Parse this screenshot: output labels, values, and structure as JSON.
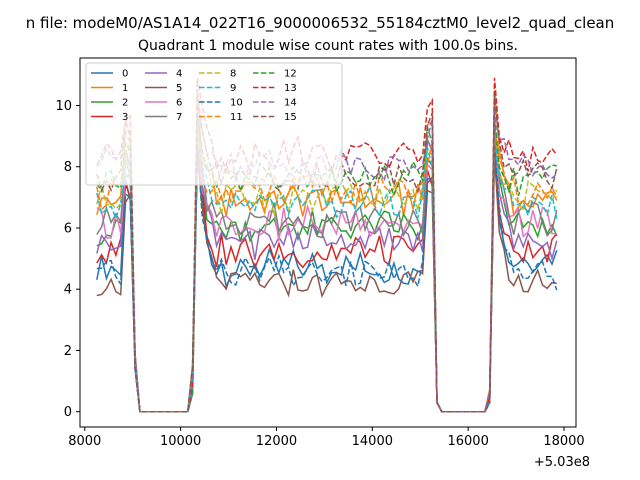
{
  "chart_data": {
    "type": "line",
    "suptitle": "n file: modeM0/AS1A14_022T16_9000006532_55184cztM0_level2_quad_clean",
    "title": "Quadrant 1 module wise count rates with 100.0s bins.",
    "xlabel": "",
    "ylabel": "",
    "x_offset_label": "+5.03e8",
    "xlim": [
      7900,
      18250
    ],
    "ylim": [
      -0.5,
      11.55
    ],
    "x_ticks": [
      8000,
      10000,
      12000,
      14000,
      16000,
      18000
    ],
    "x_tick_labels": [
      "8000",
      "10000",
      "12000",
      "14000",
      "16000",
      "18000"
    ],
    "y_ticks": [
      0,
      2,
      4,
      6,
      8,
      10
    ],
    "y_tick_labels": [
      "0",
      "2",
      "4",
      "6",
      "8",
      "10"
    ],
    "legend_location": "upper-left",
    "legend_columns": 4,
    "time_start": 8250,
    "time_end": 17850,
    "bin_width": 100,
    "segments": [
      {
        "from": 8250,
        "to": 8950,
        "state": "on"
      },
      {
        "from": 9050,
        "to": 9150,
        "state": "falling"
      },
      {
        "from": 9250,
        "to": 10150,
        "state": "off"
      },
      {
        "from": 10250,
        "to": 10350,
        "state": "rising"
      },
      {
        "from": 10350,
        "to": 15250,
        "state": "on"
      },
      {
        "from": 15350,
        "to": 15450,
        "state": "falling"
      },
      {
        "from": 15450,
        "to": 16350,
        "state": "off"
      },
      {
        "from": 16450,
        "to": 16550,
        "state": "rising"
      },
      {
        "from": 16550,
        "to": 17850,
        "state": "on"
      }
    ],
    "series": [
      {
        "name": "0",
        "style": "solid",
        "color": "#1f77b4",
        "level": 4.7,
        "peak": 9.0
      },
      {
        "name": "1",
        "style": "solid",
        "color": "#ff7f0e",
        "level": 6.9,
        "peak": 10.5
      },
      {
        "name": "2",
        "style": "solid",
        "color": "#2ca02c",
        "level": 6.0,
        "peak": 8.9
      },
      {
        "name": "3",
        "style": "solid",
        "color": "#d62728",
        "level": 5.2,
        "peak": 8.6
      },
      {
        "name": "4",
        "style": "solid",
        "color": "#9467bd",
        "level": 5.6,
        "peak": 9.6
      },
      {
        "name": "5",
        "style": "solid",
        "color": "#8c564b",
        "level": 4.2,
        "peak": 8.4
      },
      {
        "name": "6",
        "style": "solid",
        "color": "#e377c2",
        "level": 6.1,
        "peak": 9.1
      },
      {
        "name": "7",
        "style": "solid",
        "color": "#7f7f7f",
        "level": 6.3,
        "peak": 9.4
      },
      {
        "name": "8",
        "style": "dashed",
        "color": "#bcbd22",
        "level": 7.0,
        "peak": 9.3
      },
      {
        "name": "9",
        "style": "dashed",
        "color": "#17becf",
        "level": 6.8,
        "peak": 9.0
      },
      {
        "name": "10",
        "style": "dashed",
        "color": "#1f77b4",
        "level": 4.5,
        "peak": 8.7
      },
      {
        "name": "11",
        "style": "dashed",
        "color": "#ff7f0e",
        "level": 7.2,
        "peak": 9.2
      },
      {
        "name": "12",
        "style": "dashed",
        "color": "#2ca02c",
        "level": 7.6,
        "peak": 9.7
      },
      {
        "name": "13",
        "style": "dashed",
        "color": "#d62728",
        "level": 8.4,
        "peak": 10.9
      },
      {
        "name": "14",
        "style": "dashed",
        "color": "#9467bd",
        "level": 8.1,
        "peak": 9.9
      },
      {
        "name": "15",
        "style": "dashed",
        "color": "#8c564b",
        "level": 7.7,
        "peak": 10.4
      }
    ]
  }
}
